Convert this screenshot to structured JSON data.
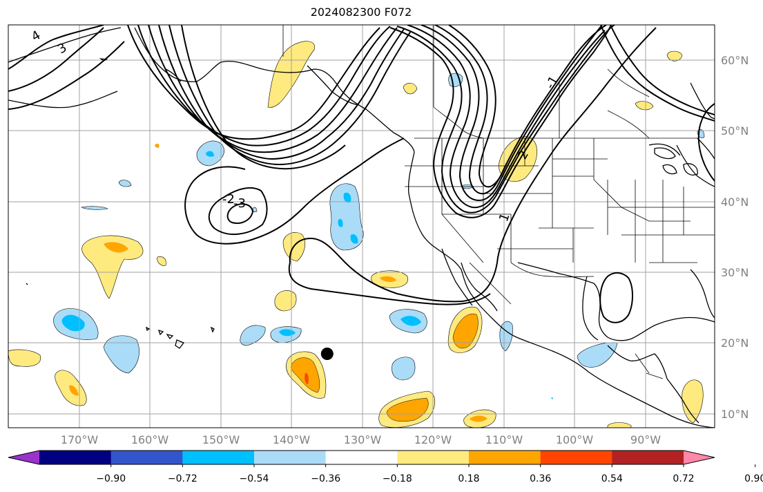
{
  "title": "2024082300 F072",
  "map": {
    "lon_labels": [
      "170°W",
      "160°W",
      "150°W",
      "140°W",
      "130°W",
      "120°W",
      "110°W",
      "100°W",
      "90°W"
    ],
    "lat_labels": [
      "60°N",
      "50°N",
      "40°N",
      "30°N",
      "20°N",
      "10°N"
    ],
    "contour_labels": [
      "3",
      "-2",
      "-3",
      "1",
      "2",
      "-1",
      "4"
    ],
    "marker": {
      "lon": -135,
      "lat": 18.5
    }
  },
  "colorbar": {
    "ticks": [
      "−0.90",
      "−0.72",
      "−0.54",
      "−0.36",
      "−0.18",
      "0.18",
      "0.36",
      "0.54",
      "0.72",
      "0.90"
    ],
    "colors": [
      "#9933cc",
      "#000080",
      "#3355cc",
      "#00bfff",
      "#aadcf8",
      "#ffffff",
      "#ffea80",
      "#ffa500",
      "#ff4500",
      "#b22222",
      "#ff88aa"
    ]
  }
}
